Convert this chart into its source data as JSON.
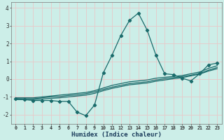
{
  "xlabel": "Humidex (Indice chaleur)",
  "background_color": "#cceee8",
  "line_color": "#1a6b6b",
  "grid_color": "#e8c8c8",
  "x_values": [
    0,
    1,
    2,
    3,
    4,
    5,
    6,
    7,
    8,
    9,
    10,
    11,
    12,
    13,
    14,
    15,
    16,
    17,
    18,
    19,
    20,
    21,
    22,
    23
  ],
  "line_main": [
    -1.1,
    -1.15,
    -1.2,
    -1.2,
    -1.2,
    -1.25,
    -1.25,
    -1.85,
    -2.05,
    -1.45,
    0.35,
    1.35,
    2.45,
    3.3,
    3.7,
    2.75,
    1.35,
    0.3,
    0.25,
    0.05,
    -0.1,
    0.3,
    0.8,
    0.9
  ],
  "line_upper": [
    -1.05,
    -1.05,
    -1.05,
    -1.0,
    -0.95,
    -0.9,
    -0.85,
    -0.8,
    -0.75,
    -0.65,
    -0.5,
    -0.35,
    -0.25,
    -0.15,
    -0.1,
    -0.05,
    0.05,
    0.1,
    0.15,
    0.2,
    0.3,
    0.4,
    0.6,
    0.75
  ],
  "line_mid": [
    -1.1,
    -1.1,
    -1.1,
    -1.05,
    -1.0,
    -0.98,
    -0.92,
    -0.88,
    -0.82,
    -0.72,
    -0.58,
    -0.45,
    -0.35,
    -0.25,
    -0.2,
    -0.15,
    -0.05,
    0.02,
    0.08,
    0.14,
    0.22,
    0.32,
    0.5,
    0.65
  ],
  "line_lower": [
    -1.15,
    -1.15,
    -1.15,
    -1.12,
    -1.08,
    -1.05,
    -1.0,
    -0.95,
    -0.9,
    -0.8,
    -0.65,
    -0.52,
    -0.42,
    -0.32,
    -0.27,
    -0.22,
    -0.12,
    -0.05,
    0.02,
    0.08,
    0.18,
    0.28,
    0.45,
    0.58
  ],
  "ylim": [
    -2.5,
    4.3
  ],
  "xlim": [
    -0.5,
    23.5
  ],
  "yticks": [
    -2,
    -1,
    0,
    1,
    2,
    3,
    4
  ],
  "xticks": [
    0,
    1,
    2,
    3,
    4,
    5,
    6,
    7,
    8,
    9,
    10,
    11,
    12,
    13,
    14,
    15,
    16,
    17,
    18,
    19,
    20,
    21,
    22,
    23
  ]
}
